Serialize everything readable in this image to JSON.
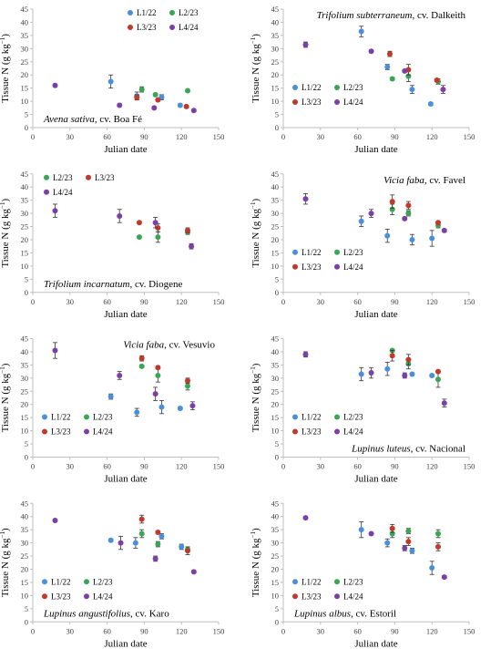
{
  "chart_data": [
    {
      "type": "scatter",
      "crop": "Avena sativa",
      "cultivar": ", cv. Boa Fé",
      "label_position": "bottom-left",
      "legend_position": "top-right",
      "xlabel": "Julian date",
      "ylabel": "Tissue N (g kg",
      "ylabel_sup": "−1",
      "ylabel_end": ")",
      "xlim": [
        0,
        150
      ],
      "ylim": [
        0,
        45
      ],
      "xticks": [
        0,
        30,
        60,
        90,
        120,
        150
      ],
      "yticks": [
        0,
        5,
        10,
        15,
        20,
        25,
        30,
        35,
        40,
        45
      ],
      "series": [
        {
          "name": "L1/22",
          "color": "#4a90d9",
          "points": [
            {
              "x": 63,
              "y": 17.5,
              "err": 2.5
            },
            {
              "x": 84,
              "y": 12,
              "err": 1.5
            },
            {
              "x": 104,
              "y": 11.5,
              "err": 1
            },
            {
              "x": 119,
              "y": 8.5,
              "err": 0.5
            }
          ]
        },
        {
          "name": "L2/23",
          "color": "#3aa655",
          "points": [
            {
              "x": 88,
              "y": 14.5,
              "err": 1
            },
            {
              "x": 99,
              "y": 12.5,
              "err": 0.5
            },
            {
              "x": 125,
              "y": 14,
              "err": 0.5
            }
          ]
        },
        {
          "name": "L3/23",
          "color": "#c0392b",
          "points": [
            {
              "x": 84,
              "y": 11.5,
              "err": 1
            },
            {
              "x": 101,
              "y": 10.5,
              "err": 0.5
            },
            {
              "x": 124,
              "y": 8,
              "err": 0.5
            }
          ]
        },
        {
          "name": "L4/24",
          "color": "#7b3fa6",
          "points": [
            {
              "x": 18,
              "y": 16,
              "err": 0.5
            },
            {
              "x": 70,
              "y": 8.5,
              "err": 0.5
            },
            {
              "x": 98,
              "y": 7.5,
              "err": 0.5
            },
            {
              "x": 130,
              "y": 6.5,
              "err": 0.5
            }
          ]
        }
      ]
    },
    {
      "type": "scatter",
      "crop": "Trifolium subterraneum",
      "cultivar": ", cv. Dalkeith",
      "label_position": "top-right",
      "legend_position": "bottom-left",
      "xlabel": "Julian date",
      "ylabel": "Tissue N (g kg",
      "ylabel_sup": "−1",
      "ylabel_end": ")",
      "xlim": [
        0,
        150
      ],
      "ylim": [
        0,
        45
      ],
      "xticks": [
        0,
        30,
        60,
        90,
        120,
        150
      ],
      "yticks": [
        0,
        5,
        10,
        15,
        20,
        25,
        30,
        35,
        40,
        45
      ],
      "series": [
        {
          "name": "L1/22",
          "color": "#4a90d9",
          "points": [
            {
              "x": 63,
              "y": 36.5,
              "err": 2
            },
            {
              "x": 84,
              "y": 23,
              "err": 1
            },
            {
              "x": 104,
              "y": 14.5,
              "err": 1.5
            },
            {
              "x": 119,
              "y": 9,
              "err": 0.5
            }
          ]
        },
        {
          "name": "L2/23",
          "color": "#3aa655",
          "points": [
            {
              "x": 88,
              "y": 18.5,
              "err": 0.5
            },
            {
              "x": 101,
              "y": 19.5,
              "err": 2
            },
            {
              "x": 125,
              "y": 17.5,
              "err": 1
            }
          ]
        },
        {
          "name": "L3/23",
          "color": "#c0392b",
          "points": [
            {
              "x": 86,
              "y": 28,
              "err": 1
            },
            {
              "x": 101,
              "y": 22,
              "err": 2
            },
            {
              "x": 124,
              "y": 18,
              "err": 0.5
            }
          ]
        },
        {
          "name": "L4/24",
          "color": "#7b3fa6",
          "points": [
            {
              "x": 18,
              "y": 31.5,
              "err": 1
            },
            {
              "x": 71,
              "y": 29,
              "err": 0.5
            },
            {
              "x": 98,
              "y": 21.5,
              "err": 0.5
            },
            {
              "x": 129,
              "y": 14.5,
              "err": 1.5
            }
          ]
        }
      ]
    },
    {
      "type": "scatter",
      "crop": "Trifolium incarnatum",
      "cultivar": ", cv. Diogene",
      "label_position": "bottom-left",
      "legend_position": "top-left",
      "xlabel": "Julian date",
      "ylabel": "Tissue N (g kg",
      "ylabel_sup": "−1",
      "ylabel_end": ")",
      "xlim": [
        0,
        150
      ],
      "ylim": [
        0,
        45
      ],
      "xticks": [
        0,
        30,
        60,
        90,
        120,
        150
      ],
      "yticks": [
        0,
        5,
        10,
        15,
        20,
        25,
        30,
        35,
        40,
        45
      ],
      "series": [
        {
          "name": "L2/23",
          "color": "#3aa655",
          "points": [
            {
              "x": 86,
              "y": 21,
              "err": 0.5
            },
            {
              "x": 101,
              "y": 21,
              "err": 2
            },
            {
              "x": 125,
              "y": 23,
              "err": 1
            }
          ]
        },
        {
          "name": "L3/23",
          "color": "#c0392b",
          "points": [
            {
              "x": 86,
              "y": 26.5,
              "err": 0.5
            },
            {
              "x": 101,
              "y": 24.5,
              "err": 1.5
            },
            {
              "x": 125,
              "y": 23.5,
              "err": 1
            }
          ]
        },
        {
          "name": "L4/24",
          "color": "#7b3fa6",
          "points": [
            {
              "x": 18,
              "y": 31,
              "err": 2.5
            },
            {
              "x": 70,
              "y": 29,
              "err": 2.5
            },
            {
              "x": 99,
              "y": 26.5,
              "err": 2
            },
            {
              "x": 128,
              "y": 17.5,
              "err": 1
            }
          ]
        }
      ]
    },
    {
      "type": "scatter",
      "crop": "Vicia faba",
      "cultivar": ", cv. Favel",
      "label_position": "top-right",
      "legend_position": "bottom-left",
      "xlabel": "Julian date",
      "ylabel": "Tissue N (g kg",
      "ylabel_sup": "−1",
      "ylabel_end": ")",
      "xlim": [
        0,
        150
      ],
      "ylim": [
        0,
        45
      ],
      "xticks": [
        0,
        30,
        60,
        90,
        120,
        150
      ],
      "yticks": [
        0,
        5,
        10,
        15,
        20,
        25,
        30,
        35,
        40,
        45
      ],
      "series": [
        {
          "name": "L1/22",
          "color": "#4a90d9",
          "points": [
            {
              "x": 63,
              "y": 27,
              "err": 2
            },
            {
              "x": 84,
              "y": 21.5,
              "err": 2.5
            },
            {
              "x": 104,
              "y": 20,
              "err": 2
            },
            {
              "x": 120,
              "y": 20.5,
              "err": 3
            }
          ]
        },
        {
          "name": "L2/23",
          "color": "#3aa655",
          "points": [
            {
              "x": 88,
              "y": 31.5,
              "err": 2
            },
            {
              "x": 101,
              "y": 30,
              "err": 1
            },
            {
              "x": 125,
              "y": 25.5,
              "err": 1
            }
          ]
        },
        {
          "name": "L3/23",
          "color": "#c0392b",
          "points": [
            {
              "x": 88,
              "y": 34.5,
              "err": 2.5
            },
            {
              "x": 101,
              "y": 33,
              "err": 1.5
            },
            {
              "x": 125,
              "y": 26.5,
              "err": 0.5
            }
          ]
        },
        {
          "name": "L4/24",
          "color": "#7b3fa6",
          "points": [
            {
              "x": 18,
              "y": 35.5,
              "err": 2
            },
            {
              "x": 71,
              "y": 30,
              "err": 1.5
            },
            {
              "x": 98,
              "y": 28,
              "err": 0.5
            },
            {
              "x": 130,
              "y": 23.5,
              "err": 0.5
            }
          ]
        }
      ]
    },
    {
      "type": "scatter",
      "crop": "Vicia faba",
      "cultivar": ", cv. Vesuvio",
      "label_position": "top-right",
      "legend_position": "bottom-left",
      "xlabel": "Julian date",
      "ylabel": "Tissue N (g kg",
      "ylabel_sup": "−1",
      "ylabel_end": ")",
      "xlim": [
        0,
        150
      ],
      "ylim": [
        0,
        45
      ],
      "xticks": [
        0,
        30,
        60,
        90,
        120,
        150
      ],
      "yticks": [
        0,
        5,
        10,
        15,
        20,
        25,
        30,
        35,
        40,
        45
      ],
      "series": [
        {
          "name": "L1/22",
          "color": "#4a90d9",
          "points": [
            {
              "x": 63,
              "y": 23,
              "err": 1
            },
            {
              "x": 84,
              "y": 17,
              "err": 1.5
            },
            {
              "x": 104,
              "y": 19,
              "err": 2.5
            },
            {
              "x": 119,
              "y": 18.5,
              "err": 0.5
            }
          ]
        },
        {
          "name": "L2/23",
          "color": "#3aa655",
          "points": [
            {
              "x": 88,
              "y": 34.5,
              "err": 0.5
            },
            {
              "x": 101,
              "y": 31,
              "err": 2.5
            },
            {
              "x": 125,
              "y": 27,
              "err": 1.5
            }
          ]
        },
        {
          "name": "L3/23",
          "color": "#c0392b",
          "points": [
            {
              "x": 88,
              "y": 37.5,
              "err": 1
            },
            {
              "x": 101,
              "y": 34,
              "err": 0.5
            },
            {
              "x": 125,
              "y": 29,
              "err": 1
            }
          ]
        },
        {
          "name": "L4/24",
          "color": "#7b3fa6",
          "points": [
            {
              "x": 18,
              "y": 40.5,
              "err": 3
            },
            {
              "x": 70,
              "y": 31,
              "err": 1.5
            },
            {
              "x": 99,
              "y": 24,
              "err": 2.5
            },
            {
              "x": 129,
              "y": 19.5,
              "err": 1.5
            }
          ]
        }
      ]
    },
    {
      "type": "scatter",
      "crop": "Lupinus luteus",
      "cultivar": ", cv. Nacional",
      "label_position": "bottom-right",
      "legend_position": "bottom-left",
      "xlabel": "Julian date",
      "ylabel": "Tissue N (g kg",
      "ylabel_sup": "−1",
      "ylabel_end": ")",
      "xlim": [
        0,
        150
      ],
      "ylim": [
        0,
        45
      ],
      "xticks": [
        0,
        30,
        60,
        90,
        120,
        150
      ],
      "yticks": [
        0,
        5,
        10,
        15,
        20,
        25,
        30,
        35,
        40,
        45
      ],
      "series": [
        {
          "name": "L1/22",
          "color": "#4a90d9",
          "points": [
            {
              "x": 63,
              "y": 31.5,
              "err": 2.5
            },
            {
              "x": 84,
              "y": 33.5,
              "err": 2.5
            },
            {
              "x": 104,
              "y": 31.5,
              "err": 0.5
            },
            {
              "x": 120,
              "y": 31,
              "err": 0.5
            }
          ]
        },
        {
          "name": "L2/23",
          "color": "#3aa655",
          "points": [
            {
              "x": 88,
              "y": 40.5,
              "err": 0.5
            },
            {
              "x": 101,
              "y": 35.5,
              "err": 2
            },
            {
              "x": 125,
              "y": 29.5,
              "err": 3
            }
          ]
        },
        {
          "name": "L3/23",
          "color": "#c0392b",
          "points": [
            {
              "x": 88,
              "y": 38.5,
              "err": 2
            },
            {
              "x": 101,
              "y": 37,
              "err": 2
            },
            {
              "x": 125,
              "y": 32.5,
              "err": 0.5
            }
          ]
        },
        {
          "name": "L4/24",
          "color": "#7b3fa6",
          "points": [
            {
              "x": 18,
              "y": 39,
              "err": 1
            },
            {
              "x": 71,
              "y": 32,
              "err": 2
            },
            {
              "x": 98,
              "y": 31,
              "err": 1
            },
            {
              "x": 130,
              "y": 20.5,
              "err": 1.5
            }
          ]
        }
      ]
    },
    {
      "type": "scatter",
      "crop": "Lupinus angustifolius",
      "cultivar": ", cv. Karo",
      "label_position": "bottom-left",
      "legend_position": "bottom-left",
      "xlabel": "Julian date",
      "ylabel": "Tissue N (g kg",
      "ylabel_sup": "−1",
      "ylabel_end": ")",
      "xlim": [
        0,
        150
      ],
      "ylim": [
        0,
        45
      ],
      "xticks": [
        0,
        30,
        60,
        90,
        120,
        150
      ],
      "yticks": [
        0,
        5,
        10,
        15,
        20,
        25,
        30,
        35,
        40,
        45
      ],
      "series": [
        {
          "name": "L1/22",
          "color": "#4a90d9",
          "points": [
            {
              "x": 63,
              "y": 31,
              "err": 0.5
            },
            {
              "x": 83,
              "y": 30,
              "err": 2
            },
            {
              "x": 104,
              "y": 32.5,
              "err": 1
            },
            {
              "x": 120,
              "y": 28.5,
              "err": 1
            }
          ]
        },
        {
          "name": "L2/23",
          "color": "#3aa655",
          "points": [
            {
              "x": 88,
              "y": 33.5,
              "err": 1.5
            },
            {
              "x": 101,
              "y": 29.5,
              "err": 1
            },
            {
              "x": 125,
              "y": 27.5,
              "err": 0.5
            }
          ]
        },
        {
          "name": "L3/23",
          "color": "#c0392b",
          "points": [
            {
              "x": 88,
              "y": 39,
              "err": 1.5
            },
            {
              "x": 101,
              "y": 34,
              "err": 0.5
            },
            {
              "x": 125,
              "y": 27,
              "err": 1.5
            }
          ]
        },
        {
          "name": "L4/24",
          "color": "#7b3fa6",
          "points": [
            {
              "x": 18,
              "y": 38.5,
              "err": 0.5
            },
            {
              "x": 71,
              "y": 30,
              "err": 2.5
            },
            {
              "x": 99,
              "y": 24,
              "err": 1
            },
            {
              "x": 130,
              "y": 19,
              "err": 0.5
            }
          ]
        }
      ]
    },
    {
      "type": "scatter",
      "crop": "Lupinus albus",
      "cultivar": ", cv. Estoril",
      "label_position": "bottom-left",
      "legend_position": "bottom-left",
      "xlabel": "Julian date",
      "ylabel": "Tissue N (g kg",
      "ylabel_sup": "−1",
      "ylabel_end": ")",
      "xlim": [
        0,
        150
      ],
      "ylim": [
        0,
        45
      ],
      "xticks": [
        0,
        30,
        60,
        90,
        120,
        150
      ],
      "yticks": [
        0,
        5,
        10,
        15,
        20,
        25,
        30,
        35,
        40,
        45
      ],
      "series": [
        {
          "name": "L1/22",
          "color": "#4a90d9",
          "points": [
            {
              "x": 63,
              "y": 35,
              "err": 3
            },
            {
              "x": 84,
              "y": 30,
              "err": 1.5
            },
            {
              "x": 104,
              "y": 27,
              "err": 1
            },
            {
              "x": 120,
              "y": 20.5,
              "err": 2.5
            }
          ]
        },
        {
          "name": "L2/23",
          "color": "#3aa655",
          "points": [
            {
              "x": 88,
              "y": 33.5,
              "err": 1.5
            },
            {
              "x": 101,
              "y": 34.5,
              "err": 1
            },
            {
              "x": 125,
              "y": 33.5,
              "err": 1.5
            }
          ]
        },
        {
          "name": "L3/23",
          "color": "#c0392b",
          "points": [
            {
              "x": 88,
              "y": 35.5,
              "err": 1.5
            },
            {
              "x": 101,
              "y": 30.5,
              "err": 1.5
            },
            {
              "x": 125,
              "y": 28.5,
              "err": 1.5
            }
          ]
        },
        {
          "name": "L4/24",
          "color": "#7b3fa6",
          "points": [
            {
              "x": 18,
              "y": 39.5,
              "err": 0.5
            },
            {
              "x": 71,
              "y": 33.5,
              "err": 0.5
            },
            {
              "x": 98,
              "y": 28,
              "err": 1
            },
            {
              "x": 130,
              "y": 17,
              "err": 0.5
            }
          ]
        }
      ]
    }
  ]
}
